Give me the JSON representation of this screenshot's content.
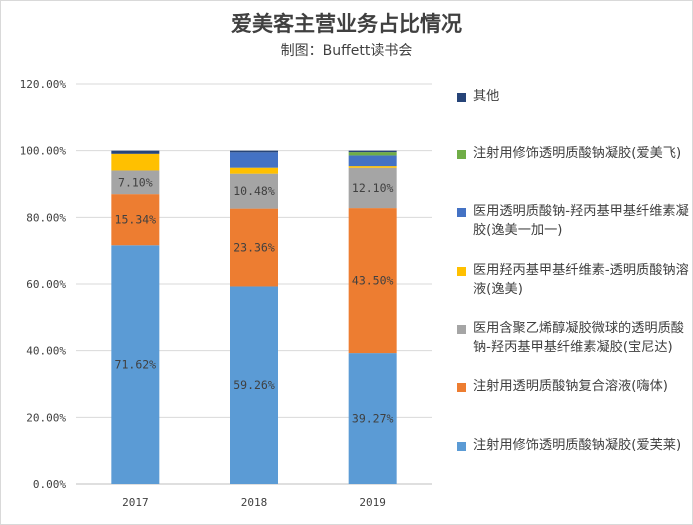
{
  "chart_data": {
    "type": "bar",
    "stacked": true,
    "title": "爱美客主营业务占比情况",
    "subtitle": "制图：Buffett读书会",
    "categories": [
      "2017",
      "2018",
      "2019"
    ],
    "ylim": [
      0,
      120
    ],
    "yticks": [
      "0.00%",
      "20.00%",
      "40.00%",
      "60.00%",
      "80.00%",
      "100.00%",
      "120.00%"
    ],
    "legend_position": "right",
    "series": [
      {
        "name": "注射用修饰透明质酸钠凝胶(爱芙莱)",
        "color": "#5b9bd5",
        "values": [
          71.62,
          59.26,
          39.27
        ],
        "labels": [
          "71.62%",
          "59.26%",
          "39.27%"
        ]
      },
      {
        "name": "注射用透明质酸钠复合溶液(嗨体)",
        "color": "#ed7d31",
        "values": [
          15.34,
          23.36,
          43.5
        ],
        "labels": [
          "15.34%",
          "23.36%",
          "43.50%"
        ]
      },
      {
        "name": "医用含聚乙烯醇凝胶微球的透明质酸钠-羟丙基甲基纤维素凝胶(宝尼达)",
        "color": "#a5a5a5",
        "values": [
          7.1,
          10.48,
          12.1
        ],
        "labels": [
          "7.10%",
          "10.48%",
          "12.10%"
        ]
      },
      {
        "name": "医用羟丙基甲基纤维素-透明质酸钠溶液(逸美)",
        "color": "#ffc000",
        "values": [
          5.0,
          1.8,
          0.5
        ],
        "labels": [
          "",
          "",
          ""
        ]
      },
      {
        "name": "医用透明质酸钠-羟丙基甲基纤维素凝胶(逸美一加一)",
        "color": "#4472c4",
        "values": [
          0.0,
          4.6,
          3.2
        ],
        "labels": [
          "",
          "",
          ""
        ]
      },
      {
        "name": "注射用修饰透明质酸钠凝胶(爱美飞)",
        "color": "#70ad47",
        "values": [
          0.0,
          0.0,
          1.0
        ],
        "labels": [
          "",
          "",
          ""
        ]
      },
      {
        "name": "其他",
        "color": "#264478",
        "values": [
          0.94,
          0.5,
          0.43
        ],
        "labels": [
          "",
          "",
          ""
        ]
      }
    ]
  }
}
